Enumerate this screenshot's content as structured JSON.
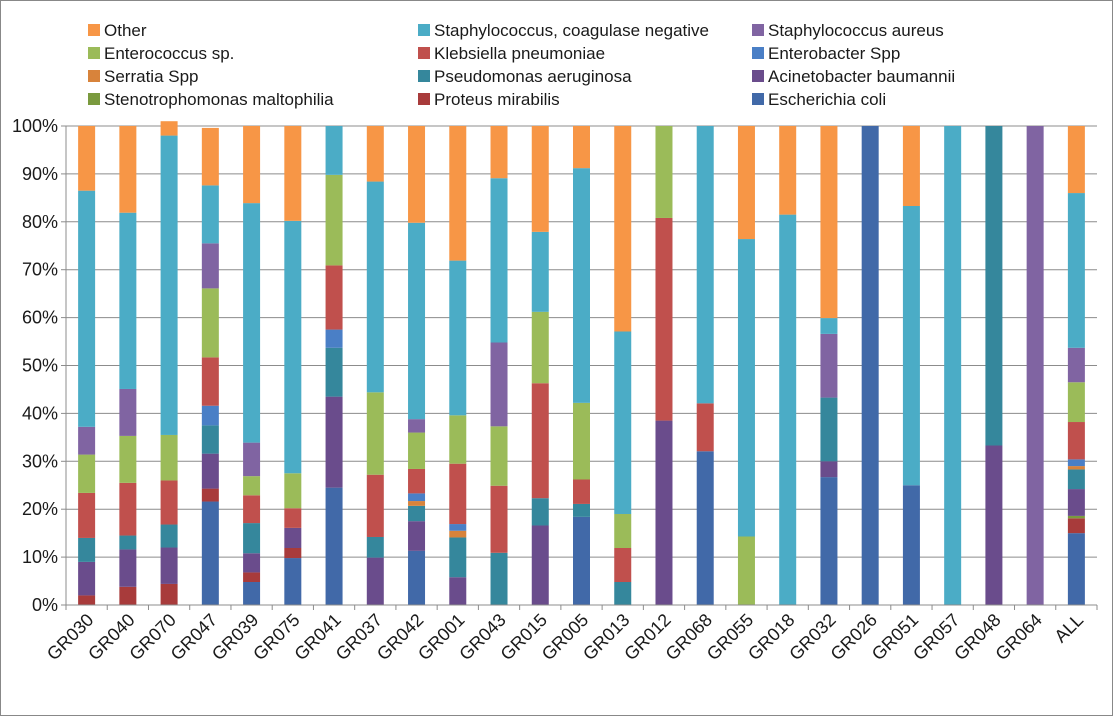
{
  "chart_data": {
    "type": "bar",
    "stacked": "percent",
    "categories": [
      "GR030",
      "GR040",
      "GR070",
      "GR047",
      "GR039",
      "GR075",
      "GR041",
      "GR037",
      "GR042",
      "GR001",
      "GR043",
      "GR015",
      "GR005",
      "GR013",
      "GR012",
      "GR068",
      "GR055",
      "GR018",
      "GR032",
      "GR026",
      "GR051",
      "GR057",
      "GR048",
      "GR064",
      "ALL"
    ],
    "ylim": [
      0,
      100
    ],
    "y_ticks": [
      "0%",
      "10%",
      "20%",
      "30%",
      "40%",
      "50%",
      "60%",
      "70%",
      "80%",
      "90%",
      "100%"
    ],
    "grid": "horizontal",
    "legend_position": "top",
    "series": [
      {
        "name": "Escherichia coli",
        "color": "#4169A8",
        "values": [
          0,
          0,
          0,
          21.6,
          4.8,
          9.8,
          24.5,
          0,
          11.3,
          0,
          0,
          0,
          18.4,
          0,
          0,
          32.1,
          0,
          0,
          26.7,
          100,
          25,
          0,
          0,
          0,
          15
        ]
      },
      {
        "name": "Proteus mirabilis",
        "color": "#A83B3B",
        "values": [
          2,
          3.8,
          4.4,
          2.7,
          2,
          2.1,
          0,
          0,
          0,
          0,
          0,
          0,
          0,
          0,
          0,
          0,
          0,
          0,
          0,
          0,
          0,
          0,
          0,
          0,
          3.1
        ]
      },
      {
        "name": "Stenotrophomonas maltophilia",
        "color": "#7A9A3E",
        "values": [
          0,
          0,
          0,
          0,
          0,
          0,
          0,
          0,
          0,
          0,
          0,
          0,
          0,
          0,
          0,
          0,
          0,
          0,
          0,
          0,
          0,
          0,
          0,
          0,
          0.5
        ]
      },
      {
        "name": "Acinetobacter baumannii",
        "color": "#6A4C8C",
        "values": [
          7,
          7.8,
          7.6,
          7.3,
          4,
          4.2,
          19,
          9.9,
          6.2,
          5.8,
          0,
          16.6,
          0,
          0,
          38.5,
          0,
          0,
          0,
          3.3,
          0,
          0,
          0,
          33.3,
          0,
          5.6
        ]
      },
      {
        "name": "Pseudomonas aeruginosa",
        "color": "#35879C",
        "values": [
          5,
          2.9,
          4.8,
          5.9,
          6.3,
          0,
          10.2,
          4.3,
          3.2,
          8.3,
          10.9,
          5.7,
          2.7,
          4.8,
          0,
          0,
          0,
          0,
          13.3,
          0,
          0,
          0,
          66.7,
          0,
          4.1
        ]
      },
      {
        "name": "Serratia Spp",
        "color": "#D8833B",
        "values": [
          0,
          0,
          0,
          0,
          0,
          0,
          0,
          0,
          1,
          1.4,
          0,
          0,
          0,
          0,
          0,
          0,
          0,
          0,
          0,
          0,
          0,
          0,
          0,
          0,
          0.7
        ]
      },
      {
        "name": "Enterobacter Spp",
        "color": "#4A7FC6",
        "values": [
          0,
          0,
          0,
          4.1,
          0,
          0,
          3.8,
          0,
          1.6,
          1.4,
          0,
          0,
          0,
          0,
          0,
          0,
          0,
          0,
          0,
          0,
          0,
          0,
          0,
          0,
          1.4
        ]
      },
      {
        "name": "Klebsiella pneumoniae",
        "color": "#C0504D",
        "values": [
          9.4,
          11,
          9.2,
          10.1,
          5.8,
          4.1,
          13.4,
          13,
          5.1,
          12.6,
          14,
          24,
          5.1,
          7.1,
          42.3,
          10,
          0,
          0,
          0,
          0,
          0,
          0,
          0,
          0,
          7.8
        ]
      },
      {
        "name": "Enterococcus sp.",
        "color": "#9BBB59",
        "values": [
          8,
          9.8,
          9.5,
          14.4,
          4,
          7.3,
          18.9,
          17.2,
          7.6,
          10.1,
          12.4,
          14.9,
          16,
          7.1,
          19.2,
          0,
          14.3,
          0,
          0,
          0,
          0,
          0,
          0,
          0,
          8.3
        ]
      },
      {
        "name": "Staphylococcus aureus",
        "color": "#8064A2",
        "values": [
          5.8,
          9.8,
          0,
          9.4,
          7,
          0,
          0,
          0,
          2.8,
          0,
          17.5,
          0,
          0,
          0,
          0,
          0,
          0,
          0,
          13.3,
          0,
          0,
          0,
          0,
          100,
          7.2
        ]
      },
      {
        "name": "Staphylococcus, coagulase negative",
        "color": "#4BACC6",
        "values": [
          49.3,
          36.8,
          62.5,
          12.1,
          50,
          52.7,
          10.2,
          44,
          41,
          32.3,
          34.3,
          16.7,
          49,
          38.1,
          0,
          57.9,
          62.1,
          81.5,
          3.3,
          0,
          58.3,
          100,
          0,
          0,
          32.3
        ]
      },
      {
        "name": "Other",
        "color": "#F79646",
        "values": [
          13.5,
          18.1,
          3,
          12,
          16.1,
          19.8,
          0,
          11.6,
          20.2,
          28.1,
          10.9,
          22.1,
          8.8,
          42.9,
          0,
          0,
          23.6,
          18.5,
          40.1,
          0,
          16.7,
          0,
          0,
          0,
          14
        ]
      }
    ]
  },
  "legend": [
    {
      "label": "Other",
      "color": "#F79646"
    },
    {
      "label": "Staphylococcus, coagulase negative",
      "color": "#4BACC6"
    },
    {
      "label": "Staphylococcus aureus",
      "color": "#8064A2"
    },
    {
      "label": "Enterococcus sp.",
      "color": "#9BBB59"
    },
    {
      "label": "Klebsiella pneumoniae",
      "color": "#C0504D"
    },
    {
      "label": "Enterobacter Spp",
      "color": "#4A7FC6"
    },
    {
      "label": "Serratia Spp",
      "color": "#D8833B"
    },
    {
      "label": "Pseudomonas aeruginosa",
      "color": "#35879C"
    },
    {
      "label": "Acinetobacter baumannii",
      "color": "#6A4C8C"
    },
    {
      "label": "Stenotrophomonas maltophilia",
      "color": "#7A9A3E"
    },
    {
      "label": "Proteus mirabilis",
      "color": "#A83B3B"
    },
    {
      "label": "Escherichia coli",
      "color": "#4169A8"
    }
  ]
}
